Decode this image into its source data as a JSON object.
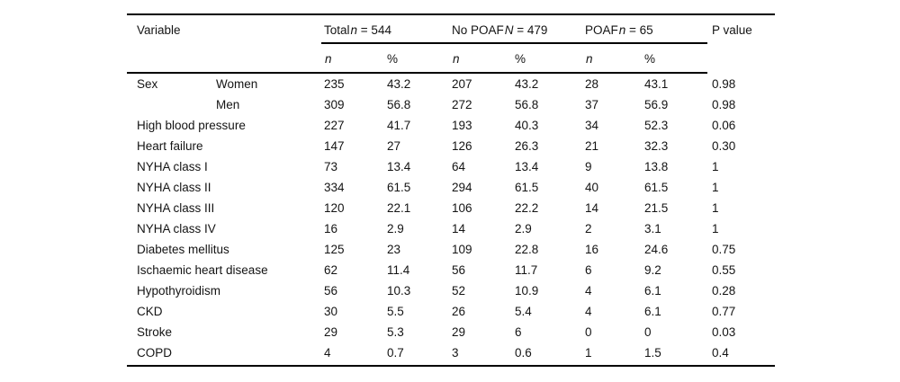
{
  "page": {
    "background": "#ffffff",
    "text_color": "#141414",
    "rule_color": "#000000"
  },
  "table": {
    "header": {
      "variable_label": "Variable",
      "groups": [
        {
          "name": "Total",
          "symbol": "n",
          "count": " = 544"
        },
        {
          "name": "No POAF",
          "symbol": "N",
          "count": " = 479"
        },
        {
          "name": "POAF",
          "symbol": "n",
          "count": " = 65"
        }
      ],
      "p_value_label": "P value",
      "subheaders": [
        "n",
        "%",
        "n",
        "%",
        "n",
        "%"
      ]
    },
    "rows": [
      {
        "variable": "Sex",
        "sub": "Women",
        "values": [
          "235",
          "43.2",
          "207",
          "43.2",
          "28",
          "43.1"
        ],
        "p": "0.98"
      },
      {
        "variable": "",
        "sub": "Men",
        "values": [
          "309",
          "56.8",
          "272",
          "56.8",
          "37",
          "56.9"
        ],
        "p": "0.98"
      },
      {
        "variable": "High blood pressure",
        "sub": "",
        "values": [
          "227",
          "41.7",
          "193",
          "40.3",
          "34",
          "52.3"
        ],
        "p": "0.06"
      },
      {
        "variable": "Heart failure",
        "sub": "",
        "values": [
          "147",
          "27",
          "126",
          "26.3",
          "21",
          "32.3"
        ],
        "p": "0.30"
      },
      {
        "variable": "NYHA class I",
        "sub": "",
        "values": [
          "73",
          "13.4",
          "64",
          "13.4",
          "9",
          "13.8"
        ],
        "p": "1"
      },
      {
        "variable": "NYHA class II",
        "sub": "",
        "values": [
          "334",
          "61.5",
          "294",
          "61.5",
          "40",
          "61.5"
        ],
        "p": "1"
      },
      {
        "variable": "NYHA class III",
        "sub": "",
        "values": [
          "120",
          "22.1",
          "106",
          "22.2",
          "14",
          "21.5"
        ],
        "p": "1"
      },
      {
        "variable": "NYHA class IV",
        "sub": "",
        "values": [
          "16",
          "2.9",
          "14",
          "2.9",
          "2",
          "3.1"
        ],
        "p": "1"
      },
      {
        "variable": "Diabetes mellitus",
        "sub": "",
        "values": [
          "125",
          "23",
          "109",
          "22.8",
          "16",
          "24.6"
        ],
        "p": "0.75"
      },
      {
        "variable": "Ischaemic heart disease",
        "sub": "",
        "values": [
          "62",
          "11.4",
          "56",
          "11.7",
          "6",
          "9.2"
        ],
        "p": "0.55"
      },
      {
        "variable": "Hypothyroidism",
        "sub": "",
        "values": [
          "56",
          "10.3",
          "52",
          "10.9",
          "4",
          "6.1"
        ],
        "p": "0.28"
      },
      {
        "variable": "CKD",
        "sub": "",
        "values": [
          "30",
          "5.5",
          "26",
          "5.4",
          "4",
          "6.1"
        ],
        "p": "0.77"
      },
      {
        "variable": "Stroke",
        "sub": "",
        "values": [
          "29",
          "5.3",
          "29",
          "6",
          "0",
          "0"
        ],
        "p": "0.03"
      },
      {
        "variable": "COPD",
        "sub": "",
        "values": [
          "4",
          "0.7",
          "3",
          "0.6",
          "1",
          "1.5"
        ],
        "p": "0.4"
      }
    ],
    "layout": {
      "first_data_row_top": 71,
      "row_pitch": 23
    }
  }
}
